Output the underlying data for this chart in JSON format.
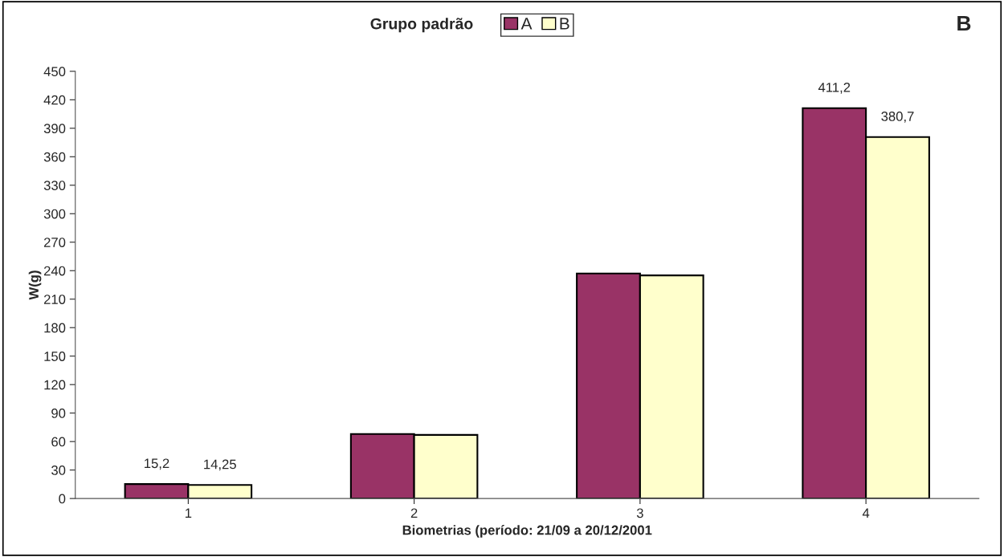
{
  "chart_data": {
    "type": "bar",
    "title": "Grupo padrão",
    "xlabel": "Biometrias (período: 21/09 a 20/12/2001",
    "ylabel": "W(g)",
    "categories": [
      "1",
      "2",
      "3",
      "4"
    ],
    "series": [
      {
        "name": "A",
        "color": "#993366",
        "values": [
          15.2,
          68,
          237,
          411.2
        ],
        "value_labels": [
          "15,2",
          null,
          null,
          "411,2"
        ]
      },
      {
        "name": "B",
        "color": "#ffffcc",
        "values": [
          14.25,
          67,
          235,
          380.7
        ],
        "value_labels": [
          "14,25",
          null,
          null,
          "380,7"
        ]
      }
    ],
    "ylim": [
      0,
      450
    ],
    "yticks": [
      0,
      30,
      60,
      90,
      120,
      150,
      180,
      210,
      240,
      270,
      300,
      330,
      360,
      390,
      420,
      450
    ],
    "annotations": [
      "B"
    ],
    "grid": false,
    "legend": "top"
  }
}
